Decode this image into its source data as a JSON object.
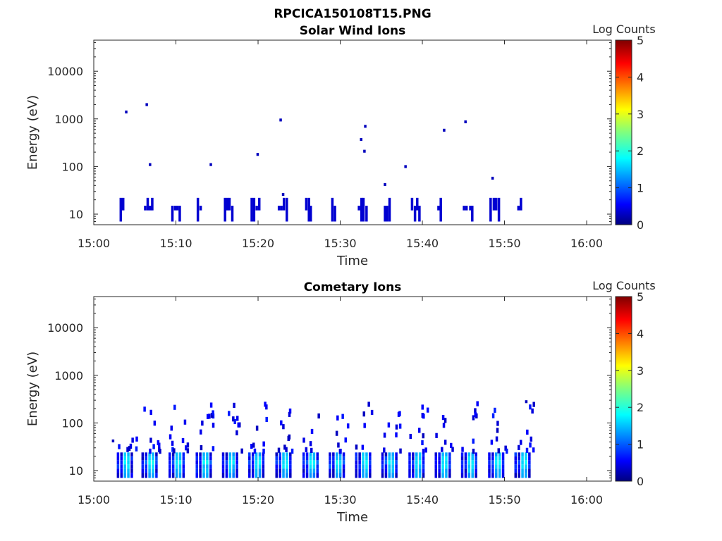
{
  "figure_title": "RPCICA150108T15.PNG",
  "colors": {
    "axis": "#262626",
    "colormap": [
      "#00007f",
      "#0000ff",
      "#007fff",
      "#00ffff",
      "#7fff7f",
      "#ffff00",
      "#ff7f00",
      "#ff0000",
      "#7f0000"
    ]
  },
  "chart_data": [
    {
      "type": "heatmap",
      "title": "Solar Wind Ions",
      "xlabel": "Time",
      "ylabel": "Energy (eV)",
      "x_range": [
        "15:00",
        "16:03"
      ],
      "y_scale": "log",
      "ylim": [
        6,
        45000
      ],
      "xticks": [
        "15:00",
        "15:10",
        "15:20",
        "15:30",
        "15:40",
        "15:50",
        "16:00"
      ],
      "yticks": [
        "10",
        "100",
        "1000",
        "10000"
      ],
      "colorbar": {
        "label": "Log Counts",
        "ticks": [
          "0",
          "1",
          "2",
          "3",
          "4",
          "5"
        ],
        "range": [
          0,
          5
        ]
      },
      "sweeps_start_min": [
        3.0,
        6.0,
        9.3,
        12.5,
        15.7,
        19.0,
        22.3,
        25.6,
        28.8,
        32.0,
        35.2,
        38.5,
        41.7,
        44.9,
        48.1,
        51.4
      ],
      "low_energy_band_eV": [
        7,
        22
      ],
      "low_energy_log_counts": 0.4,
      "sparse_points": [
        {
          "t": 3.8,
          "e": 1400,
          "v": 0.3
        },
        {
          "t": 6.3,
          "e": 2000,
          "v": 0.3
        },
        {
          "t": 6.7,
          "e": 110,
          "v": 0.3
        },
        {
          "t": 14.1,
          "e": 110,
          "v": 0.3
        },
        {
          "t": 19.8,
          "e": 180,
          "v": 0.3
        },
        {
          "t": 22.6,
          "e": 950,
          "v": 0.3
        },
        {
          "t": 22.9,
          "e": 26,
          "v": 0.3
        },
        {
          "t": 32.4,
          "e": 370,
          "v": 0.3
        },
        {
          "t": 32.8,
          "e": 210,
          "v": 0.3
        },
        {
          "t": 32.9,
          "e": 700,
          "v": 0.3
        },
        {
          "t": 35.3,
          "e": 42,
          "v": 0.3
        },
        {
          "t": 37.8,
          "e": 100,
          "v": 0.3
        },
        {
          "t": 42.5,
          "e": 580,
          "v": 0.3
        },
        {
          "t": 45.1,
          "e": 870,
          "v": 0.3
        },
        {
          "t": 48.4,
          "e": 57,
          "v": 0.3
        }
      ]
    },
    {
      "type": "heatmap",
      "title": "Cometary Ions",
      "xlabel": "Time",
      "ylabel": "Energy (eV)",
      "x_range": [
        "15:00",
        "16:03"
      ],
      "y_scale": "log",
      "ylim": [
        6,
        45000
      ],
      "xticks": [
        "15:00",
        "15:10",
        "15:20",
        "15:30",
        "15:40",
        "15:50",
        "16:00"
      ],
      "yticks": [
        "10",
        "100",
        "1000",
        "10000"
      ],
      "colorbar": {
        "label": "Log Counts",
        "ticks": [
          "0",
          "1",
          "2",
          "3",
          "4",
          "5"
        ],
        "range": [
          0,
          5
        ]
      },
      "sweeps_start_min": [
        2.8,
        5.8,
        9.1,
        12.4,
        15.6,
        18.8,
        22.1,
        25.4,
        28.6,
        31.8,
        35.0,
        38.3,
        41.5,
        44.7,
        48.0,
        51.2
      ],
      "core_band_eV": [
        7,
        24
      ],
      "core_peak_log_counts": 1.8,
      "upper_scatter_eV": [
        25,
        260
      ],
      "isolated_points": [
        {
          "t": 52.5,
          "e": 280,
          "v": 0.3
        },
        {
          "t": 2.2,
          "e": 42,
          "v": 0.3
        }
      ]
    }
  ]
}
